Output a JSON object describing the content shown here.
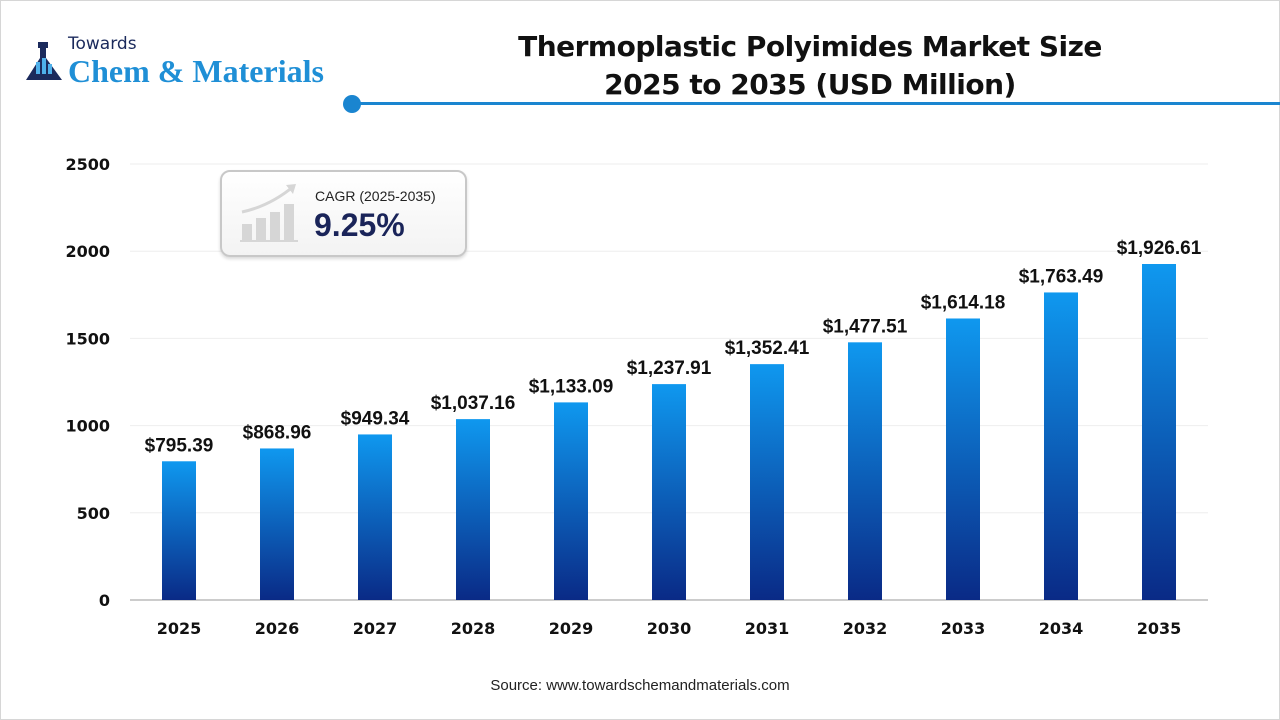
{
  "logo": {
    "line1": "Towards",
    "line2": "Chem & Materials"
  },
  "header": {
    "title_line1": "Thermoplastic Polyimides Market Size",
    "title_line2": "2025 to 2035 (USD Million)"
  },
  "cagr": {
    "label": "CAGR (2025-2035)",
    "value": "9.25%",
    "icon": "growth-chart-icon"
  },
  "source": "Source: www.towardschemandmaterials.com",
  "colors": {
    "bar_top": "#0f98ef",
    "bar_bottom": "#0a2a86",
    "accent": "#1a85d0"
  },
  "chart_data": {
    "type": "bar",
    "title": "Thermoplastic Polyimides Market Size 2025 to 2035 (USD Million)",
    "categories": [
      "2025",
      "2026",
      "2027",
      "2028",
      "2029",
      "2030",
      "2031",
      "2032",
      "2033",
      "2034",
      "2035"
    ],
    "values": [
      795.39,
      868.96,
      949.34,
      1037.16,
      1133.09,
      1237.91,
      1352.41,
      1477.51,
      1614.18,
      1763.49,
      1926.61
    ],
    "data_labels": [
      "$795.39",
      "$868.96",
      "$949.34",
      "$1,037.16",
      "$1,133.09",
      "$1,237.91",
      "$1,352.41",
      "$1,477.51",
      "$1,614.18",
      "$1,763.49",
      "$1,926.61"
    ],
    "yticks": [
      "0",
      "500",
      "1000",
      "1500",
      "2000",
      "2500"
    ],
    "ylim": [
      0,
      2500
    ],
    "grid": true,
    "xlabel": "",
    "ylabel": ""
  }
}
